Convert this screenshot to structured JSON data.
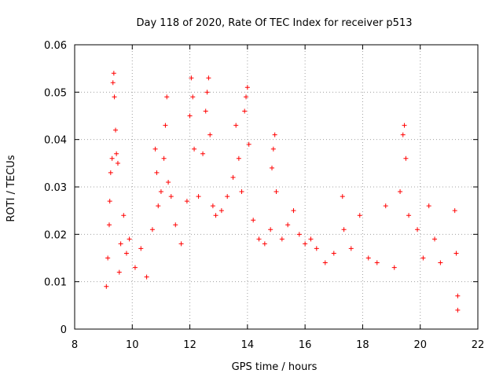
{
  "chart_data": {
    "type": "scatter",
    "title": "Day 118 of 2020, Rate Of TEC Index for receiver p513",
    "xlabel": "GPS time / hours",
    "ylabel": "ROTI / TECUs",
    "xlim": [
      8,
      22
    ],
    "ylim": [
      0,
      0.06
    ],
    "xticks": [
      "8",
      "10",
      "12",
      "14",
      "16",
      "18",
      "20",
      "22"
    ],
    "yticks": [
      "0",
      "0.01",
      "0.02",
      "0.03",
      "0.04",
      "0.05",
      "0.06"
    ],
    "grid": true,
    "marker": "plus",
    "color": "#ff0000",
    "series": [
      {
        "points": [
          [
            9.1,
            0.009
          ],
          [
            9.15,
            0.015
          ],
          [
            9.2,
            0.022
          ],
          [
            9.22,
            0.027
          ],
          [
            9.25,
            0.033
          ],
          [
            9.3,
            0.036
          ],
          [
            9.33,
            0.052
          ],
          [
            9.36,
            0.054
          ],
          [
            9.38,
            0.049
          ],
          [
            9.42,
            0.042
          ],
          [
            9.45,
            0.037
          ],
          [
            9.5,
            0.035
          ],
          [
            9.55,
            0.012
          ],
          [
            9.6,
            0.018
          ],
          [
            9.7,
            0.024
          ],
          [
            9.8,
            0.016
          ],
          [
            9.9,
            0.019
          ],
          [
            10.1,
            0.013
          ],
          [
            10.3,
            0.017
          ],
          [
            10.5,
            0.011
          ],
          [
            10.7,
            0.021
          ],
          [
            10.8,
            0.038
          ],
          [
            10.85,
            0.033
          ],
          [
            10.9,
            0.026
          ],
          [
            11.0,
            0.029
          ],
          [
            11.1,
            0.036
          ],
          [
            11.15,
            0.043
          ],
          [
            11.2,
            0.049
          ],
          [
            11.25,
            0.031
          ],
          [
            11.35,
            0.028
          ],
          [
            11.5,
            0.022
          ],
          [
            11.7,
            0.018
          ],
          [
            11.9,
            0.027
          ],
          [
            12.0,
            0.045
          ],
          [
            12.05,
            0.053
          ],
          [
            12.1,
            0.049
          ],
          [
            12.15,
            0.038
          ],
          [
            12.3,
            0.028
          ],
          [
            12.45,
            0.037
          ],
          [
            12.55,
            0.046
          ],
          [
            12.6,
            0.05
          ],
          [
            12.65,
            0.053
          ],
          [
            12.7,
            0.041
          ],
          [
            12.8,
            0.026
          ],
          [
            12.9,
            0.024
          ],
          [
            13.1,
            0.025
          ],
          [
            13.3,
            0.028
          ],
          [
            13.5,
            0.032
          ],
          [
            13.6,
            0.043
          ],
          [
            13.7,
            0.036
          ],
          [
            13.8,
            0.029
          ],
          [
            13.9,
            0.046
          ],
          [
            13.95,
            0.049
          ],
          [
            14.0,
            0.051
          ],
          [
            14.05,
            0.039
          ],
          [
            14.2,
            0.023
          ],
          [
            14.4,
            0.019
          ],
          [
            14.6,
            0.018
          ],
          [
            14.8,
            0.021
          ],
          [
            14.85,
            0.034
          ],
          [
            14.9,
            0.038
          ],
          [
            14.95,
            0.041
          ],
          [
            15.0,
            0.029
          ],
          [
            15.2,
            0.019
          ],
          [
            15.4,
            0.022
          ],
          [
            15.6,
            0.025
          ],
          [
            15.8,
            0.02
          ],
          [
            16.0,
            0.018
          ],
          [
            16.2,
            0.019
          ],
          [
            16.4,
            0.017
          ],
          [
            16.7,
            0.014
          ],
          [
            17.0,
            0.016
          ],
          [
            17.3,
            0.028
          ],
          [
            17.35,
            0.021
          ],
          [
            17.6,
            0.017
          ],
          [
            17.9,
            0.024
          ],
          [
            18.2,
            0.015
          ],
          [
            18.5,
            0.014
          ],
          [
            18.8,
            0.026
          ],
          [
            19.1,
            0.013
          ],
          [
            19.3,
            0.029
          ],
          [
            19.4,
            0.041
          ],
          [
            19.45,
            0.043
          ],
          [
            19.5,
            0.036
          ],
          [
            19.6,
            0.024
          ],
          [
            19.9,
            0.021
          ],
          [
            20.1,
            0.015
          ],
          [
            20.3,
            0.026
          ],
          [
            20.5,
            0.019
          ],
          [
            20.7,
            0.014
          ],
          [
            21.2,
            0.025
          ],
          [
            21.25,
            0.016
          ],
          [
            21.3,
            0.007
          ],
          [
            21.3,
            0.004
          ]
        ]
      }
    ]
  }
}
